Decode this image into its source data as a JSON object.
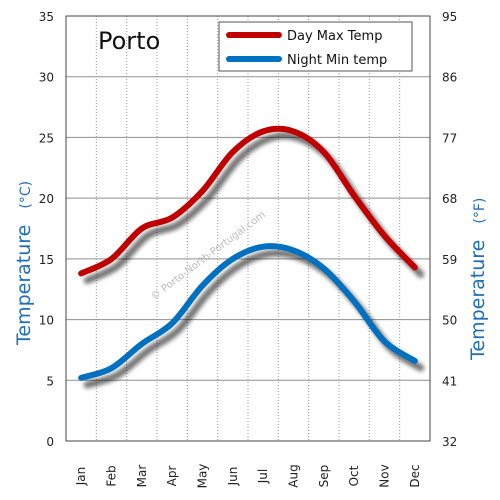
{
  "chart_data": {
    "type": "line",
    "title": "Porto",
    "categories": [
      "Jan",
      "Feb",
      "Mar",
      "Apr",
      "May",
      "Jun",
      "Jul",
      "Aug",
      "Sep",
      "Oct",
      "Nov",
      "Dec"
    ],
    "series": [
      {
        "name": "Day Max Temp",
        "color": "#c00000",
        "values": [
          13.8,
          15.0,
          17.5,
          18.4,
          20.6,
          23.8,
          25.5,
          25.5,
          23.8,
          20.2,
          16.9,
          14.3
        ]
      },
      {
        "name": "Night Min temp",
        "color": "#0070c0",
        "values": [
          5.2,
          6.0,
          8.0,
          9.7,
          12.8,
          15.0,
          16.0,
          15.7,
          14.2,
          11.5,
          8.2,
          6.6
        ]
      }
    ],
    "ylabel": "Temperature",
    "ylabel_unit": "(°C)",
    "ylabel_right": "Temperature",
    "ylabel_right_unit": "(°F)",
    "ylim": [
      0,
      35
    ],
    "yticks": [
      "0",
      "5",
      "10",
      "15",
      "20",
      "25",
      "30",
      "35"
    ],
    "yticks_right": [
      "32",
      "41",
      "50",
      "59",
      "68",
      "77",
      "86",
      "95"
    ],
    "watermark": "© Porto-North-Portugal.com",
    "grid": true,
    "legend_position": "top-right"
  }
}
